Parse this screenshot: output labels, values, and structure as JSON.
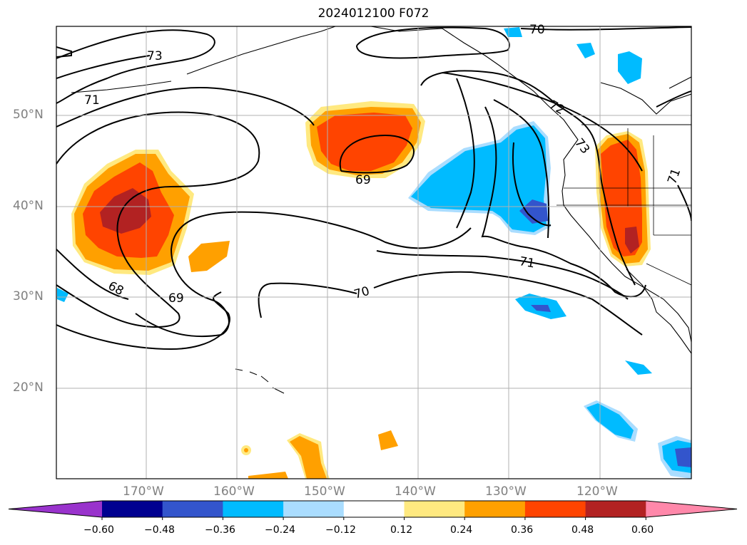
{
  "title": "2024012100 F072",
  "lat_labels": [
    "50°N",
    "40°N",
    "30°N",
    "20°N"
  ],
  "lon_labels": [
    "170°W",
    "160°W",
    "150°W",
    "140°W",
    "130°W",
    "120°W"
  ],
  "contour_labels": [
    "73",
    "71",
    "69",
    "68",
    "69",
    "70",
    "71",
    "72",
    "73",
    "70",
    "71"
  ],
  "colorbar": {
    "ticks": [
      "−0.60",
      "−0.48",
      "−0.36",
      "−0.24",
      "−0.12",
      "0.12",
      "0.24",
      "0.36",
      "0.48",
      "0.60"
    ],
    "colors": [
      "#9933cc",
      "#000090",
      "#3355cc",
      "#00bbff",
      "#aaddff",
      "#ffffff",
      "#ffe980",
      "#ffa000",
      "#ff4400",
      "#b22222",
      "#ff88aa"
    ]
  },
  "fill_colors": {
    "light_orange": "#ffe980",
    "orange": "#ffa000",
    "red_orange": "#ff4400",
    "dark_red": "#b22222",
    "cyan": "#00bbff",
    "light_blue": "#aaddff",
    "blue": "#3355cc"
  }
}
